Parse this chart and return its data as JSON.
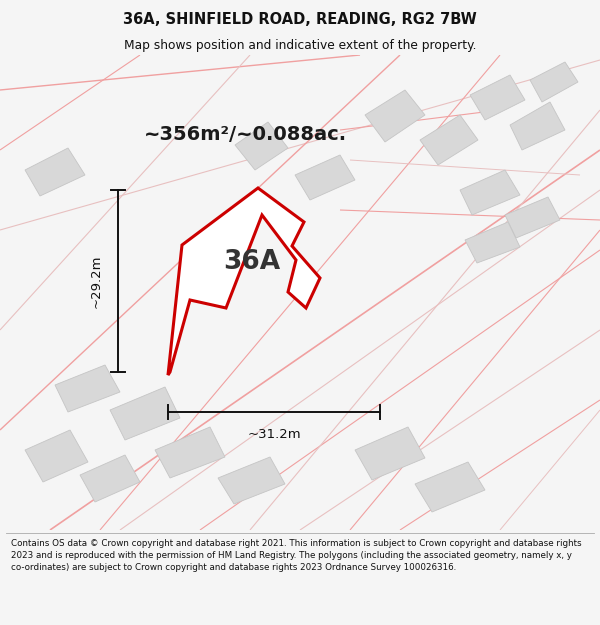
{
  "title_line1": "36A, SHINFIELD ROAD, READING, RG2 7BW",
  "title_line2": "Map shows position and indicative extent of the property.",
  "area_label": "~356m²/~0.088ac.",
  "label_36A": "36A",
  "dim_height": "~29.2m",
  "dim_width": "~31.2m",
  "footer_text": "Contains OS data © Crown copyright and database right 2021. This information is subject to Crown copyright and database rights 2023 and is reproduced with the permission of HM Land Registry. The polygons (including the associated geometry, namely x, y co-ordinates) are subject to Crown copyright and database rights 2023 Ordnance Survey 100026316.",
  "bg_color": "#f5f5f5",
  "map_bg": "#ffffff",
  "road_color": "#f0a0a0",
  "road_color2": "#e8c0c0",
  "building_color": "#d8d8d8",
  "building_edge": "#c5c5c5",
  "main_polygon_facecolor": "#ffffff",
  "main_polygon_edge": "#cc0000",
  "dim_line_color": "#111111",
  "title_color": "#111111",
  "footer_color": "#111111",
  "label_color": "#333333",
  "area_label_color": "#1a1a1a"
}
